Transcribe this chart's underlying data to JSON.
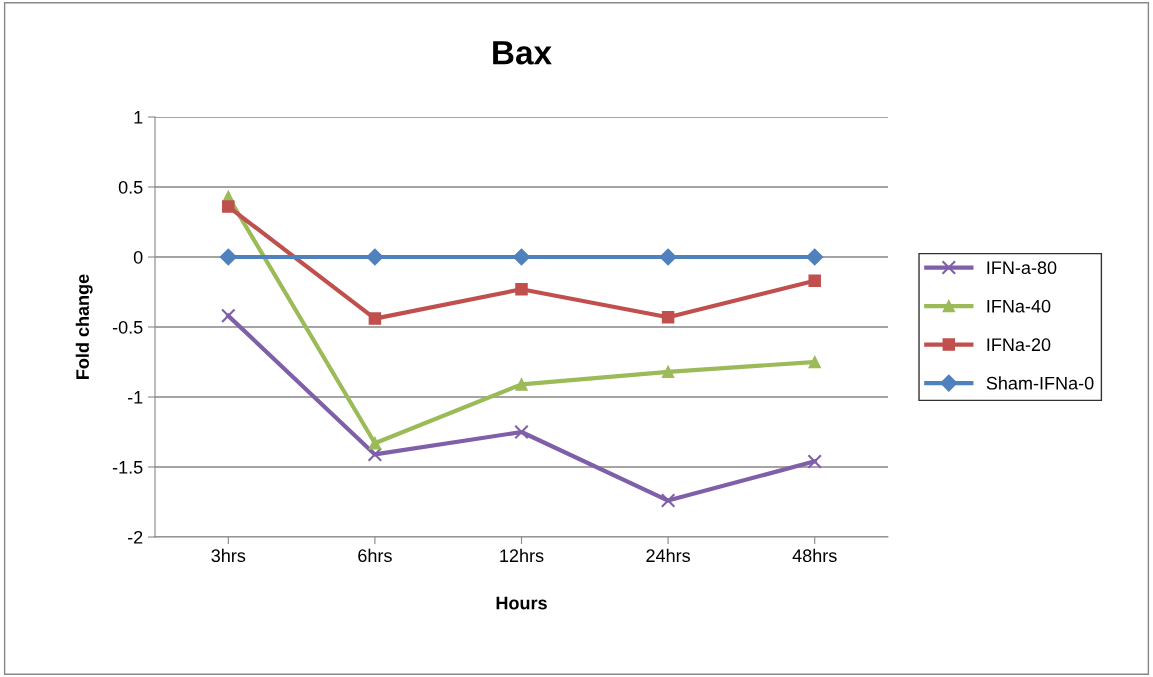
{
  "chart_data": {
    "type": "line",
    "title": "Bax",
    "xlabel": "Hours",
    "ylabel": "Fold change",
    "categories": [
      "3hrs",
      "6hrs",
      "12hrs",
      "24hrs",
      "48hrs"
    ],
    "series": [
      {
        "name": "IFN-a-80",
        "color": "#7f5fa8",
        "marker": "cross",
        "values": [
          -0.42,
          -1.41,
          -1.25,
          -1.74,
          -1.46
        ]
      },
      {
        "name": "IFNa-40",
        "color": "#9bbb59",
        "marker": "triangle",
        "values": [
          0.43,
          -1.33,
          -0.91,
          -0.82,
          -0.75
        ]
      },
      {
        "name": "IFNa-20",
        "color": "#c0504d",
        "marker": "square",
        "values": [
          0.36,
          -0.44,
          -0.23,
          -0.43,
          -0.17
        ]
      },
      {
        "name": "Sham-IFNa-0",
        "color": "#4f81bd",
        "marker": "diamond",
        "values": [
          0,
          0,
          0,
          0,
          0
        ]
      }
    ],
    "ylim": [
      -2,
      1
    ],
    "yticks": [
      -2,
      -1.5,
      -1,
      -0.5,
      0,
      0.5,
      1
    ],
    "grid": "y",
    "legend": "right"
  }
}
